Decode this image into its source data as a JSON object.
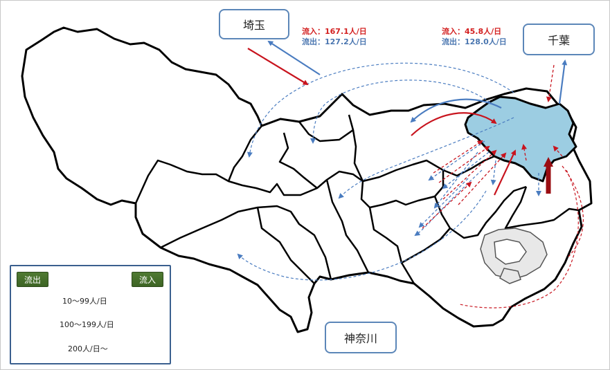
{
  "prefectures": {
    "saitama": "埼玉",
    "chiba": "千葉",
    "kanagawa": "神奈川"
  },
  "flows": {
    "saitama": {
      "inflow": "流入：167.1人/日",
      "outflow": "流出：127.2人/日"
    },
    "chiba": {
      "inflow": "流入：45.8人/日",
      "outflow": "流出：128.0人/日"
    }
  },
  "legend": {
    "outflow_chip": "流出",
    "inflow_chip": "流入",
    "rows": [
      {
        "label": "10～99人/日"
      },
      {
        "label": "100～199人/日"
      },
      {
        "label": "200人/日～"
      }
    ]
  },
  "colors": {
    "inflow": "#c8141e",
    "outflow": "#4a7cc0",
    "highlight_area": "#9ccde2",
    "legend_chip": "#4f7a32"
  }
}
